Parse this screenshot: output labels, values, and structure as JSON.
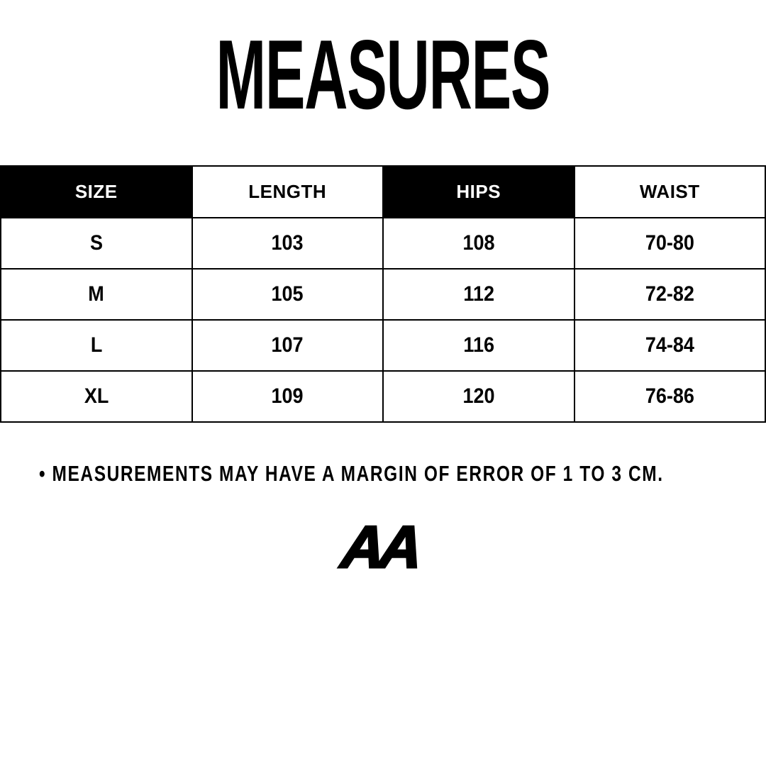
{
  "page": {
    "title": "MEASURES",
    "note": "• MEASUREMENTS MAY HAVE A MARGIN OF ERROR OF 1 TO 3 CM.",
    "logo_text": "AA"
  },
  "colors": {
    "ink": "#000000",
    "paper": "#ffffff",
    "header_dark_bg": "#000000",
    "header_dark_text": "#ffffff"
  },
  "chart_data": {
    "type": "table",
    "title": "MEASURES",
    "columns": [
      "SIZE",
      "LENGTH",
      "HIPS",
      "WAIST"
    ],
    "header_fill": [
      "black",
      "white",
      "black",
      "white"
    ],
    "rows": [
      [
        "S",
        "103",
        "108",
        "70-80"
      ],
      [
        "M",
        "105",
        "112",
        "72-82"
      ],
      [
        "L",
        "107",
        "116",
        "74-84"
      ],
      [
        "XL",
        "109",
        "120",
        "76-86"
      ]
    ],
    "footnote": "MEASUREMENTS MAY HAVE A MARGIN OF ERROR OF 1 TO 3 CM."
  }
}
